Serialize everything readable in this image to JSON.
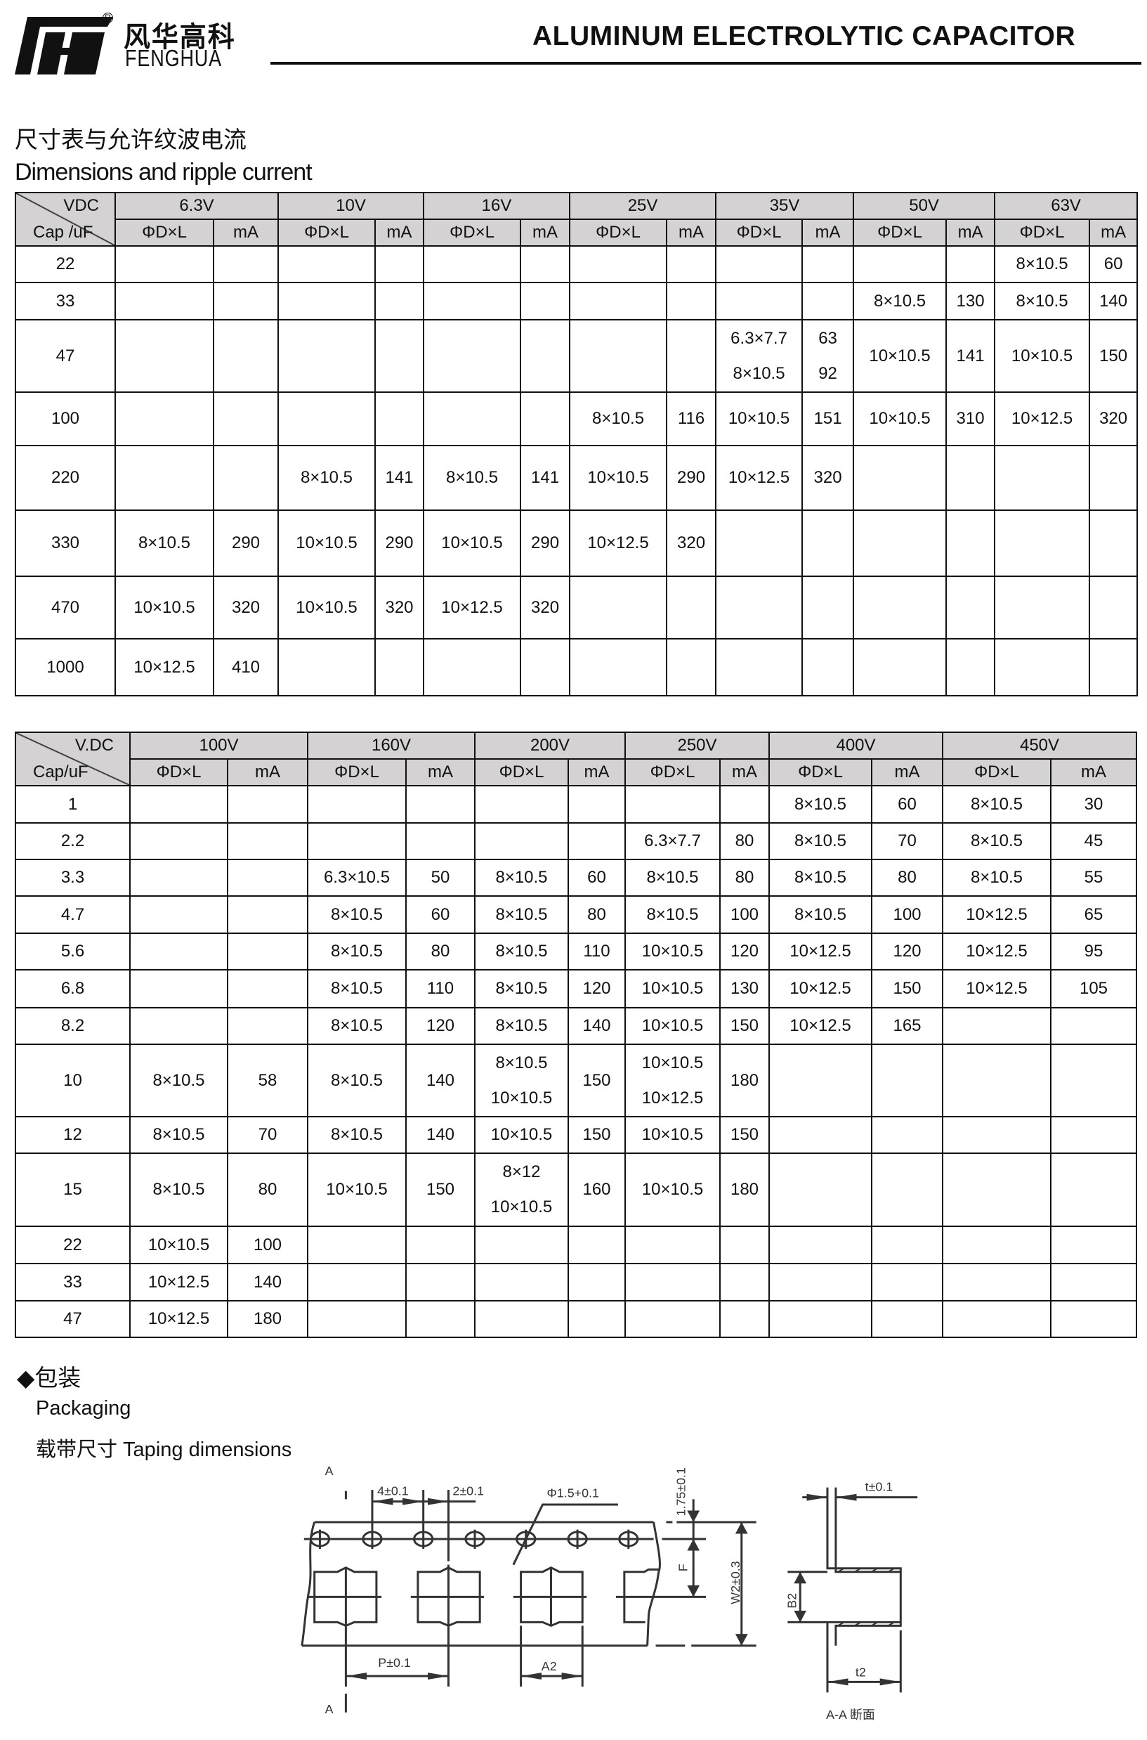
{
  "header": {
    "brand_cn": "风华高科",
    "brand_en": "FENGHUA",
    "registered_mark": "R",
    "title": "ALUMINUM ELECTROLYTIC CAPACITOR"
  },
  "section1": {
    "heading_cn": "尺寸表与允许纹波电流",
    "heading_en": "Dimensions and ripple current"
  },
  "table1": {
    "corner_top": "VDC",
    "corner_bottom": "Cap /uF",
    "voltages": [
      "6.3V",
      "10V",
      "16V",
      "25V",
      "35V",
      "50V",
      "63V"
    ],
    "sub_dim": "ΦD×L",
    "sub_ma": "mA",
    "rows": [
      {
        "cap": "22",
        "cells": [
          [
            "",
            ""
          ],
          [
            "",
            ""
          ],
          [
            "",
            ""
          ],
          [
            "",
            ""
          ],
          [
            "",
            ""
          ],
          [
            "",
            ""
          ],
          [
            "8×10.5",
            "60"
          ]
        ]
      },
      {
        "cap": "33",
        "cells": [
          [
            "",
            ""
          ],
          [
            "",
            ""
          ],
          [
            "",
            ""
          ],
          [
            "",
            ""
          ],
          [
            "",
            ""
          ],
          [
            "8×10.5",
            "130"
          ],
          [
            "8×10.5",
            "140"
          ]
        ]
      },
      {
        "cap": "47",
        "cells": [
          [
            "",
            ""
          ],
          [
            "",
            ""
          ],
          [
            "",
            ""
          ],
          [
            "",
            ""
          ],
          [
            "6.3×7.7\n8×10.5",
            "63\n92"
          ],
          [
            "10×10.5",
            "141"
          ],
          [
            "10×10.5",
            "150"
          ]
        ]
      },
      {
        "cap": "100",
        "cells": [
          [
            "",
            ""
          ],
          [
            "",
            ""
          ],
          [
            "",
            ""
          ],
          [
            "8×10.5",
            "116"
          ],
          [
            "10×10.5",
            "151"
          ],
          [
            "10×10.5",
            "310"
          ],
          [
            "10×12.5",
            "320"
          ]
        ]
      },
      {
        "cap": "220",
        "cells": [
          [
            "",
            ""
          ],
          [
            "8×10.5",
            "141"
          ],
          [
            "8×10.5",
            "141"
          ],
          [
            "10×10.5",
            "290"
          ],
          [
            "10×12.5",
            "320"
          ],
          [
            "",
            ""
          ],
          [
            "",
            ""
          ]
        ]
      },
      {
        "cap": "330",
        "cells": [
          [
            "8×10.5",
            "290"
          ],
          [
            "10×10.5",
            "290"
          ],
          [
            "10×10.5",
            "290"
          ],
          [
            "10×12.5",
            "320"
          ],
          [
            "",
            ""
          ],
          [
            "",
            ""
          ],
          [
            "",
            ""
          ]
        ]
      },
      {
        "cap": "470",
        "cells": [
          [
            "10×10.5",
            "320"
          ],
          [
            "10×10.5",
            "320"
          ],
          [
            "10×12.5",
            "320"
          ],
          [
            "",
            ""
          ],
          [
            "",
            ""
          ],
          [
            "",
            ""
          ],
          [
            "",
            ""
          ]
        ]
      },
      {
        "cap": "1000",
        "cells": [
          [
            "10×12.5",
            "410"
          ],
          [
            "",
            ""
          ],
          [
            "",
            ""
          ],
          [
            "",
            ""
          ],
          [
            "",
            ""
          ],
          [
            "",
            ""
          ],
          [
            "",
            ""
          ]
        ]
      }
    ]
  },
  "table2": {
    "corner_top": "V.DC",
    "corner_bottom": "Cap/uF",
    "voltages": [
      "100V",
      "160V",
      "200V",
      "250V",
      "400V",
      "450V"
    ],
    "sub_dim": "ΦD×L",
    "sub_ma": "mA",
    "rows": [
      {
        "cap": "1",
        "cells": [
          [
            "",
            ""
          ],
          [
            "",
            ""
          ],
          [
            "",
            ""
          ],
          [
            "",
            ""
          ],
          [
            "8×10.5",
            "60"
          ],
          [
            "8×10.5",
            "30"
          ]
        ]
      },
      {
        "cap": "2.2",
        "cells": [
          [
            "",
            ""
          ],
          [
            "",
            ""
          ],
          [
            "",
            ""
          ],
          [
            "6.3×7.7",
            "80"
          ],
          [
            "8×10.5",
            "70"
          ],
          [
            "8×10.5",
            "45"
          ]
        ]
      },
      {
        "cap": "3.3",
        "cells": [
          [
            "",
            ""
          ],
          [
            "6.3×10.5",
            "50"
          ],
          [
            "8×10.5",
            "60"
          ],
          [
            "8×10.5",
            "80"
          ],
          [
            "8×10.5",
            "80"
          ],
          [
            "8×10.5",
            "55"
          ]
        ]
      },
      {
        "cap": "4.7",
        "cells": [
          [
            "",
            ""
          ],
          [
            "8×10.5",
            "60"
          ],
          [
            "8×10.5",
            "80"
          ],
          [
            "8×10.5",
            "100"
          ],
          [
            "8×10.5",
            "100"
          ],
          [
            "10×12.5",
            "65"
          ]
        ]
      },
      {
        "cap": "5.6",
        "cells": [
          [
            "",
            ""
          ],
          [
            "8×10.5",
            "80"
          ],
          [
            "8×10.5",
            "110"
          ],
          [
            "10×10.5",
            "120"
          ],
          [
            "10×12.5",
            "120"
          ],
          [
            "10×12.5",
            "95"
          ]
        ]
      },
      {
        "cap": "6.8",
        "cells": [
          [
            "",
            ""
          ],
          [
            "8×10.5",
            "110"
          ],
          [
            "8×10.5",
            "120"
          ],
          [
            "10×10.5",
            "130"
          ],
          [
            "10×12.5",
            "150"
          ],
          [
            "10×12.5",
            "105"
          ]
        ]
      },
      {
        "cap": "8.2",
        "cells": [
          [
            "",
            ""
          ],
          [
            "8×10.5",
            "120"
          ],
          [
            "8×10.5",
            "140"
          ],
          [
            "10×10.5",
            "150"
          ],
          [
            "10×12.5",
            "165"
          ],
          [
            "",
            ""
          ]
        ]
      },
      {
        "cap": "10",
        "cells": [
          [
            "8×10.5",
            "58"
          ],
          [
            "8×10.5",
            "140"
          ],
          [
            "8×10.5\n10×10.5",
            "150"
          ],
          [
            "10×10.5\n10×12.5",
            "180"
          ],
          [
            "",
            ""
          ],
          [
            "",
            ""
          ]
        ]
      },
      {
        "cap": "12",
        "cells": [
          [
            "8×10.5",
            "70"
          ],
          [
            "8×10.5",
            "140"
          ],
          [
            "10×10.5",
            "150"
          ],
          [
            "10×10.5",
            "150"
          ],
          [
            "",
            ""
          ],
          [
            "",
            ""
          ]
        ]
      },
      {
        "cap": "15",
        "cells": [
          [
            "8×10.5",
            "80"
          ],
          [
            "10×10.5",
            "150"
          ],
          [
            "8×12\n10×10.5",
            "160"
          ],
          [
            "10×10.5",
            "180"
          ],
          [
            "",
            ""
          ],
          [
            "",
            ""
          ]
        ]
      },
      {
        "cap": "22",
        "cells": [
          [
            "10×10.5",
            "100"
          ],
          [
            "",
            ""
          ],
          [
            "",
            ""
          ],
          [
            "",
            ""
          ],
          [
            "",
            ""
          ],
          [
            "",
            ""
          ]
        ]
      },
      {
        "cap": "33",
        "cells": [
          [
            "10×12.5",
            "140"
          ],
          [
            "",
            ""
          ],
          [
            "",
            ""
          ],
          [
            "",
            ""
          ],
          [
            "",
            ""
          ],
          [
            "",
            ""
          ]
        ]
      },
      {
        "cap": "47",
        "cells": [
          [
            "10×12.5",
            "180"
          ],
          [
            "",
            ""
          ],
          [
            "",
            ""
          ],
          [
            "",
            ""
          ],
          [
            "",
            ""
          ],
          [
            "",
            ""
          ]
        ]
      }
    ]
  },
  "packaging": {
    "heading_cn": "◆包装",
    "heading_en": "Packaging",
    "subheading": "载带尺寸  Taping dimensions"
  },
  "drawing": {
    "section_mark_top": "A",
    "section_mark_bottom": "A",
    "hole_pitch": "4±0.1",
    "hole_to_pocket": "2±0.1",
    "hole_diameter": "Φ1.5+0.1",
    "edge_to_hole": "1.75±0.1",
    "f_label": "F",
    "width_label": "W2±0.3",
    "b2_label": "B2",
    "thickness_label": "t±0.1",
    "pitch_label": "P±0.1",
    "a2_label": "A2",
    "t2_label": "t2",
    "section_caption": "A-A 断面"
  },
  "colors": {
    "header_fill": "#d4d2d2",
    "ink": "#111111"
  }
}
